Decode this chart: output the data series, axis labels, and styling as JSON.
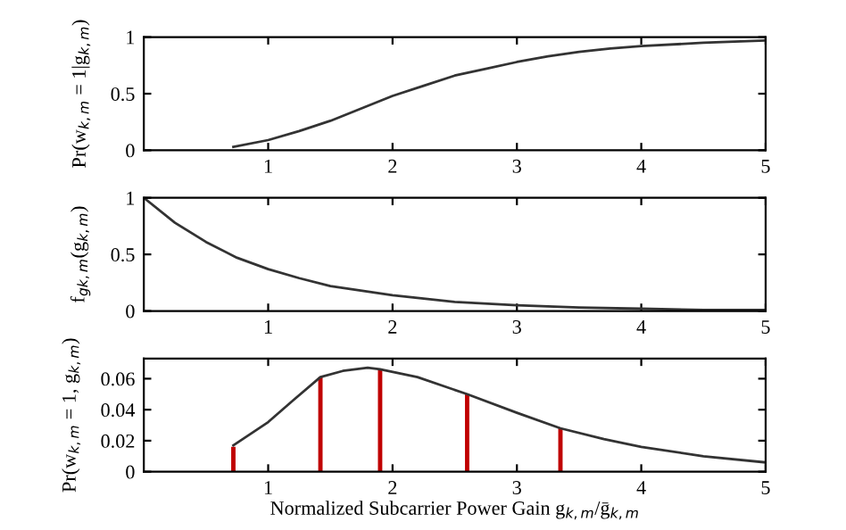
{
  "chart_data": [
    {
      "type": "line",
      "ylabel": "Pr(w$_{k,m}$ = 1|g$_{k,m}$)",
      "xlim": [
        0,
        5
      ],
      "xticks": [
        1,
        2,
        3,
        4,
        5
      ],
      "ylim": [
        0,
        1
      ],
      "yticks": [
        0,
        0.5,
        1
      ],
      "grid": false,
      "legend": false,
      "series": [
        {
          "color": "#333333",
          "x": [
            0.72,
            1,
            1.25,
            1.5,
            1.75,
            2,
            2.25,
            2.5,
            2.75,
            3,
            3.25,
            3.5,
            3.75,
            4,
            4.5,
            5
          ],
          "values": [
            0.03,
            0.09,
            0.17,
            0.26,
            0.37,
            0.48,
            0.57,
            0.66,
            0.72,
            0.78,
            0.83,
            0.87,
            0.9,
            0.92,
            0.95,
            0.97
          ]
        }
      ]
    },
    {
      "type": "line",
      "ylabel": "f$_{gk,m}$(g$_{k,m}$)",
      "xlim": [
        0,
        5
      ],
      "xticks": [
        1,
        2,
        3,
        4,
        5
      ],
      "ylim": [
        0,
        1
      ],
      "yticks": [
        0,
        0.5,
        1
      ],
      "grid": false,
      "legend": false,
      "series": [
        {
          "color": "#333333",
          "x": [
            0,
            0.25,
            0.5,
            0.75,
            1,
            1.25,
            1.5,
            2,
            2.5,
            3,
            3.5,
            4,
            4.5,
            5
          ],
          "values": [
            1,
            0.78,
            0.61,
            0.47,
            0.37,
            0.29,
            0.22,
            0.14,
            0.08,
            0.05,
            0.03,
            0.02,
            0.01,
            0.01
          ]
        }
      ]
    },
    {
      "type": "line",
      "ylabel": "Pr(w$_{k,m}$ = 1, g$_{k,m}$)",
      "xlabel": "Normalized Subcarrier Power Gain g$_{k,m}$/ḡ$_{k,m}$",
      "xlim": [
        0,
        5
      ],
      "xticks": [
        1,
        2,
        3,
        4,
        5
      ],
      "ylim": [
        0,
        0.073
      ],
      "yticks": [
        0,
        0.02,
        0.04,
        0.06
      ],
      "grid": false,
      "legend": false,
      "series": [
        {
          "color": "#333333",
          "x": [
            0.72,
            1,
            1.2,
            1.42,
            1.6,
            1.8,
            1.9,
            2.2,
            2.6,
            3,
            3.35,
            3.7,
            4,
            4.5,
            5
          ],
          "values": [
            0.017,
            0.032,
            0.046,
            0.061,
            0.065,
            0.067,
            0.066,
            0.061,
            0.05,
            0.038,
            0.028,
            0.021,
            0.016,
            0.01,
            0.006
          ]
        },
        {
          "type": "bar",
          "color": "#c00000",
          "x": [
            0.72,
            1.42,
            1.9,
            2.6,
            3.35
          ],
          "values": [
            0.016,
            0.061,
            0.066,
            0.05,
            0.028
          ]
        }
      ]
    }
  ]
}
